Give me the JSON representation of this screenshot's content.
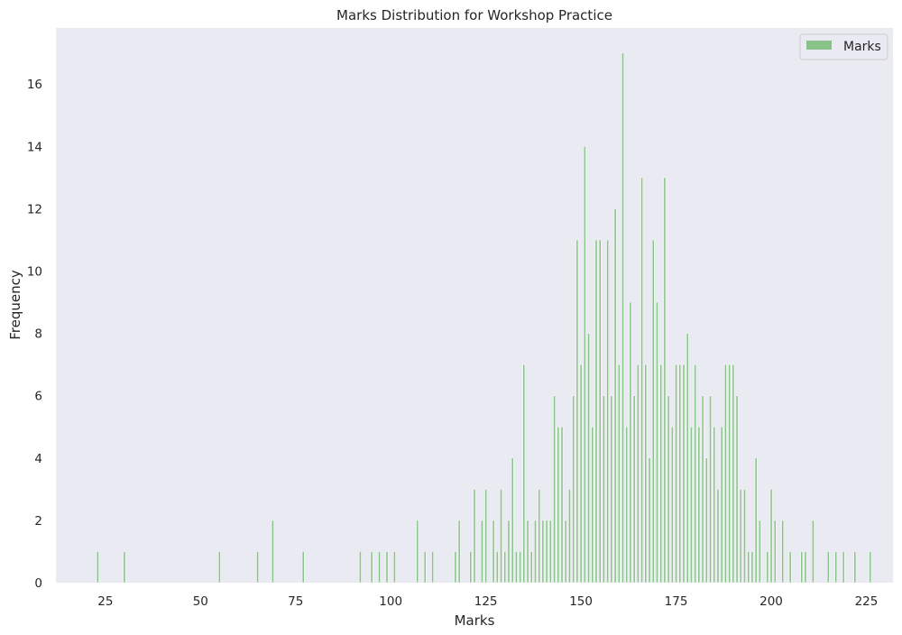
{
  "chart_data": {
    "type": "bar",
    "title": "Marks Distribution for Workshop Practice",
    "xlabel": "Marks",
    "ylabel": "Frequency",
    "xlim": [
      12,
      232
    ],
    "ylim": [
      0,
      17.8
    ],
    "xticks": [
      25,
      50,
      75,
      100,
      125,
      150,
      175,
      200,
      225
    ],
    "yticks": [
      0,
      2,
      4,
      6,
      8,
      10,
      12,
      14,
      16
    ],
    "grid": false,
    "legend_position": "top-right",
    "colors": {
      "bar": "#8ac38a",
      "plot_bg": "#eaeaf2",
      "edge": "#ffffff"
    },
    "series": [
      {
        "name": "Marks",
        "bin_width": 0.5,
        "x": [
          23,
          30,
          55,
          65,
          69,
          77,
          92,
          95,
          97,
          99,
          101,
          107,
          109,
          111,
          117,
          118,
          121,
          122,
          124,
          125,
          127,
          128,
          129,
          130,
          131,
          132,
          133,
          134,
          135,
          136,
          137,
          138,
          139,
          140,
          141,
          142,
          143,
          144,
          145,
          146,
          147,
          148,
          149,
          150,
          151,
          152,
          153,
          154,
          155,
          156,
          157,
          158,
          159,
          160,
          161,
          162,
          163,
          164,
          165,
          166,
          167,
          168,
          169,
          170,
          171,
          172,
          173,
          174,
          175,
          176,
          177,
          178,
          179,
          180,
          181,
          182,
          183,
          184,
          185,
          186,
          187,
          188,
          189,
          190,
          191,
          192,
          193,
          194,
          195,
          196,
          197,
          199,
          200,
          201,
          203,
          205,
          208,
          209,
          211,
          215,
          217,
          219,
          222,
          226
        ],
        "values": [
          1,
          1,
          1,
          1,
          2,
          1,
          1,
          1,
          1,
          1,
          1,
          2,
          1,
          1,
          1,
          2,
          1,
          3,
          2,
          3,
          2,
          1,
          3,
          1,
          2,
          4,
          1,
          1,
          7,
          2,
          1,
          2,
          3,
          2,
          2,
          2,
          6,
          5,
          5,
          2,
          3,
          6,
          11,
          7,
          14,
          8,
          5,
          11,
          11,
          6,
          11,
          6,
          12,
          7,
          17,
          5,
          9,
          6,
          7,
          13,
          7,
          4,
          11,
          9,
          7,
          13,
          6,
          5,
          7,
          7,
          7,
          8,
          5,
          7,
          5,
          6,
          4,
          6,
          5,
          3,
          5,
          7,
          7,
          7,
          6,
          3,
          3,
          1,
          1,
          4,
          2,
          1,
          3,
          2,
          2,
          1,
          1,
          1,
          2,
          1,
          1,
          1,
          1,
          1
        ]
      }
    ]
  }
}
